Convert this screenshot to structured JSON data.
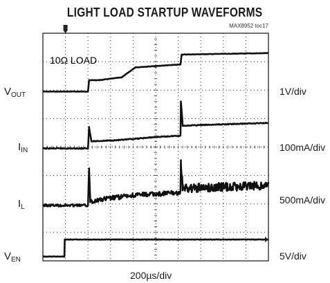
{
  "chart_data": {
    "type": "line",
    "title": "LIGHT LOAD STARTUP WAVEFORMS",
    "figure_tag": "MAX8952 toc17",
    "annotation": "10Ω LOAD",
    "time_scale": "200µs/div",
    "grid": {
      "x_divisions": 10,
      "y_divisions": 8,
      "dotted": true
    },
    "x_unit": "div",
    "y_unit": "div",
    "xlim": [
      0,
      10
    ],
    "ylim": [
      0,
      8
    ],
    "channels": [
      {
        "name_main": "V",
        "name_sub": "OUT",
        "scale": "1V/div",
        "points": [
          [
            0,
            5.95
          ],
          [
            2.0,
            5.95
          ],
          [
            2.05,
            6.35
          ],
          [
            2.5,
            6.35
          ],
          [
            3.5,
            6.45
          ],
          [
            4.1,
            6.8
          ],
          [
            6.1,
            6.9
          ],
          [
            6.15,
            7.25
          ],
          [
            10,
            7.3
          ]
        ]
      },
      {
        "name_main": "I",
        "name_sub": "IN",
        "scale": "100mA/div",
        "points": [
          [
            0,
            3.95
          ],
          [
            2.0,
            3.95
          ],
          [
            2.05,
            4.7
          ],
          [
            2.15,
            4.2
          ],
          [
            3.5,
            4.25
          ],
          [
            5,
            4.35
          ],
          [
            6.1,
            4.4
          ],
          [
            6.12,
            5.6
          ],
          [
            6.2,
            4.75
          ],
          [
            10,
            4.85
          ]
        ]
      },
      {
        "name_main": "I",
        "name_sub": "L",
        "scale": "500mA/div",
        "points": [
          [
            0,
            1.95
          ],
          [
            2.0,
            1.95
          ],
          [
            2.05,
            3.25
          ],
          [
            2.1,
            2.1
          ],
          [
            3.0,
            2.2
          ],
          [
            4.0,
            2.3
          ],
          [
            6.1,
            2.4
          ],
          [
            6.12,
            3.5
          ],
          [
            6.2,
            2.55
          ],
          [
            10,
            2.65
          ]
        ]
      },
      {
        "name_main": "V",
        "name_sub": "EN",
        "scale": "5V/div",
        "points": [
          [
            0,
            0.15
          ],
          [
            0.95,
            0.15
          ],
          [
            0.97,
            0.75
          ],
          [
            10,
            0.75
          ]
        ]
      }
    ]
  }
}
